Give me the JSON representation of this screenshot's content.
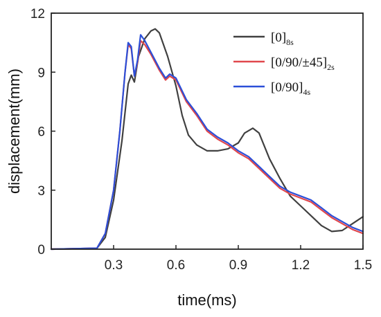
{
  "chart_data": {
    "type": "line",
    "title": "",
    "xlabel": "time(ms)",
    "ylabel": "displacement(mm)",
    "xlim": [
      0,
      1.5
    ],
    "ylim": [
      0,
      12
    ],
    "xticks": [
      0.3,
      0.6,
      0.9,
      1.2,
      1.5
    ],
    "xtick_labels": [
      "0.3",
      "0.6",
      "0.9",
      "1.2",
      "1.5"
    ],
    "yticks": [
      0,
      3,
      6,
      9,
      12
    ],
    "ytick_labels": [
      "0",
      "3",
      "6",
      "9",
      "12"
    ],
    "grid": false,
    "legend_position": "top-right",
    "series": [
      {
        "name": "[0]",
        "name_sub": "8s",
        "color": "#404040",
        "points": [
          [
            0.0,
            0.0
          ],
          [
            0.22,
            0.05
          ],
          [
            0.26,
            0.6
          ],
          [
            0.3,
            2.5
          ],
          [
            0.34,
            5.5
          ],
          [
            0.37,
            8.4
          ],
          [
            0.385,
            8.85
          ],
          [
            0.4,
            8.5
          ],
          [
            0.42,
            9.8
          ],
          [
            0.45,
            10.7
          ],
          [
            0.48,
            11.1
          ],
          [
            0.5,
            11.2
          ],
          [
            0.52,
            11.0
          ],
          [
            0.56,
            9.8
          ],
          [
            0.6,
            8.3
          ],
          [
            0.63,
            6.8
          ],
          [
            0.66,
            5.8
          ],
          [
            0.7,
            5.3
          ],
          [
            0.75,
            5.0
          ],
          [
            0.8,
            5.0
          ],
          [
            0.85,
            5.1
          ],
          [
            0.9,
            5.4
          ],
          [
            0.93,
            5.9
          ],
          [
            0.97,
            6.15
          ],
          [
            1.0,
            5.9
          ],
          [
            1.05,
            4.6
          ],
          [
            1.1,
            3.6
          ],
          [
            1.15,
            2.7
          ],
          [
            1.2,
            2.2
          ],
          [
            1.25,
            1.7
          ],
          [
            1.3,
            1.2
          ],
          [
            1.35,
            0.9
          ],
          [
            1.4,
            0.95
          ],
          [
            1.45,
            1.3
          ],
          [
            1.5,
            1.65
          ]
        ]
      },
      {
        "name": "[0/90/±45]",
        "name_sub": "2s",
        "color": "#e0474c",
        "points": [
          [
            0.0,
            0.0
          ],
          [
            0.22,
            0.05
          ],
          [
            0.26,
            0.8
          ],
          [
            0.3,
            3.0
          ],
          [
            0.33,
            6.0
          ],
          [
            0.355,
            9.0
          ],
          [
            0.37,
            10.4
          ],
          [
            0.385,
            10.2
          ],
          [
            0.4,
            8.8
          ],
          [
            0.415,
            9.5
          ],
          [
            0.43,
            10.6
          ],
          [
            0.45,
            10.4
          ],
          [
            0.48,
            9.9
          ],
          [
            0.52,
            9.1
          ],
          [
            0.55,
            8.6
          ],
          [
            0.57,
            8.8
          ],
          [
            0.6,
            8.6
          ],
          [
            0.65,
            7.5
          ],
          [
            0.7,
            6.8
          ],
          [
            0.75,
            6.0
          ],
          [
            0.8,
            5.6
          ],
          [
            0.85,
            5.3
          ],
          [
            0.9,
            4.9
          ],
          [
            0.95,
            4.6
          ],
          [
            1.0,
            4.1
          ],
          [
            1.05,
            3.6
          ],
          [
            1.1,
            3.1
          ],
          [
            1.15,
            2.8
          ],
          [
            1.2,
            2.6
          ],
          [
            1.25,
            2.4
          ],
          [
            1.3,
            2.0
          ],
          [
            1.35,
            1.6
          ],
          [
            1.4,
            1.3
          ],
          [
            1.45,
            1.0
          ],
          [
            1.5,
            0.8
          ]
        ]
      },
      {
        "name": "[0/90]",
        "name_sub": "4s",
        "color": "#2b4fd8",
        "points": [
          [
            0.0,
            0.0
          ],
          [
            0.22,
            0.05
          ],
          [
            0.26,
            0.8
          ],
          [
            0.3,
            3.0
          ],
          [
            0.33,
            6.0
          ],
          [
            0.355,
            9.0
          ],
          [
            0.37,
            10.5
          ],
          [
            0.385,
            10.3
          ],
          [
            0.4,
            8.8
          ],
          [
            0.415,
            9.6
          ],
          [
            0.43,
            10.9
          ],
          [
            0.45,
            10.6
          ],
          [
            0.48,
            10.0
          ],
          [
            0.52,
            9.2
          ],
          [
            0.55,
            8.7
          ],
          [
            0.57,
            8.9
          ],
          [
            0.6,
            8.7
          ],
          [
            0.65,
            7.6
          ],
          [
            0.7,
            6.9
          ],
          [
            0.75,
            6.1
          ],
          [
            0.8,
            5.7
          ],
          [
            0.85,
            5.4
          ],
          [
            0.9,
            5.0
          ],
          [
            0.95,
            4.7
          ],
          [
            1.0,
            4.2
          ],
          [
            1.05,
            3.7
          ],
          [
            1.1,
            3.2
          ],
          [
            1.15,
            2.9
          ],
          [
            1.2,
            2.7
          ],
          [
            1.25,
            2.5
          ],
          [
            1.3,
            2.1
          ],
          [
            1.35,
            1.7
          ],
          [
            1.4,
            1.4
          ],
          [
            1.45,
            1.1
          ],
          [
            1.5,
            0.9
          ]
        ]
      }
    ]
  }
}
